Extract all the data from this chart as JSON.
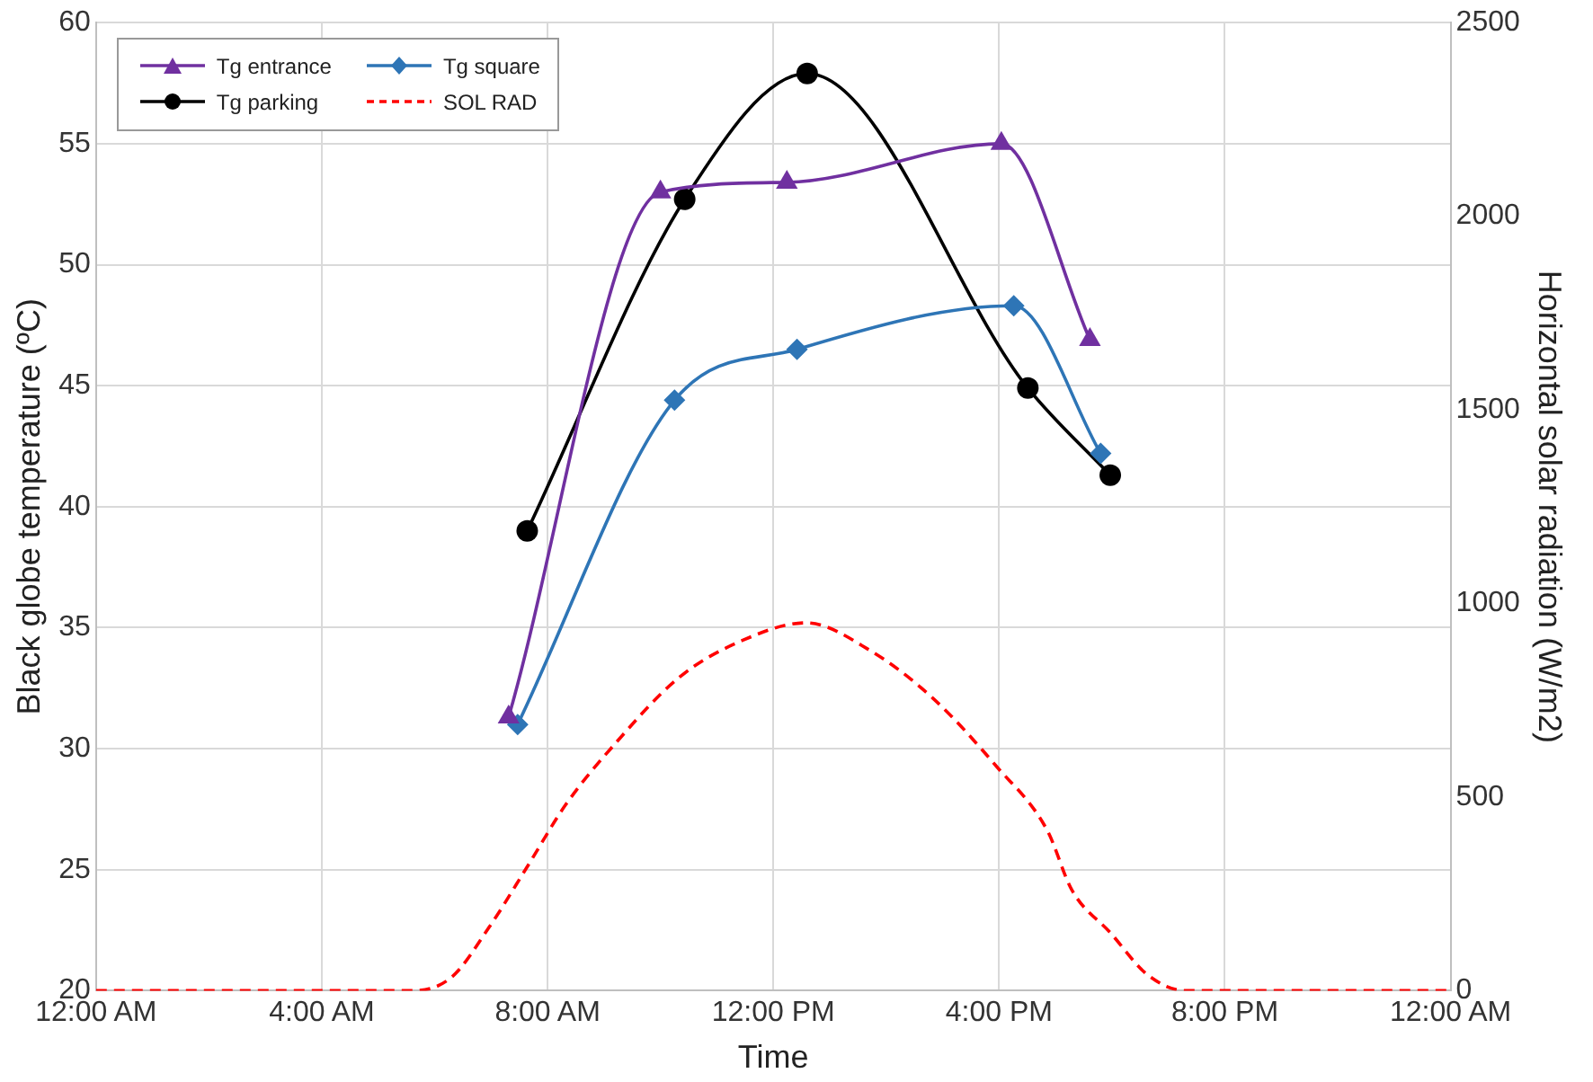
{
  "chart_data": {
    "type": "line",
    "xlabel": "Time",
    "ylabel": "Black globe temperature (ºC)",
    "y2label": "Horizontal solar radiation (W/m2)",
    "xlim": [
      0,
      24
    ],
    "xticks": [
      {
        "value": 0,
        "label": "12:00 AM"
      },
      {
        "value": 4,
        "label": "4:00 AM"
      },
      {
        "value": 8,
        "label": "8:00 AM"
      },
      {
        "value": 12,
        "label": "12:00 PM"
      },
      {
        "value": 16,
        "label": "4:00 PM"
      },
      {
        "value": 20,
        "label": "8:00 PM"
      },
      {
        "value": 24,
        "label": "12:00 AM"
      }
    ],
    "ylim": [
      20,
      60
    ],
    "yticks": [
      20,
      25,
      30,
      35,
      40,
      45,
      50,
      55,
      60
    ],
    "y2lim": [
      0,
      2500
    ],
    "y2ticks": [
      0,
      500,
      1000,
      1500,
      2000,
      2500
    ],
    "grid": true,
    "legend": "top left",
    "series": [
      {
        "name": "Tg entrance",
        "color": "#7030a0",
        "marker": "triangle",
        "line_style": "solid",
        "x": [
          7.31,
          10.0,
          12.24,
          16.04,
          17.61
        ],
        "values": [
          31.3,
          53.0,
          53.4,
          55.0,
          46.9
        ]
      },
      {
        "name": "Tg square",
        "color": "#2e75b6",
        "marker": "diamond",
        "line_style": "solid",
        "x": [
          7.47,
          10.25,
          12.42,
          16.26,
          17.8
        ],
        "values": [
          31.0,
          44.4,
          46.5,
          48.3,
          42.2
        ]
      },
      {
        "name": "Tg parking",
        "color": "#000000",
        "marker": "circle",
        "line_style": "solid",
        "x": [
          7.64,
          10.43,
          12.6,
          16.51,
          17.97
        ],
        "values": [
          39.0,
          52.7,
          57.9,
          44.9,
          41.3
        ]
      },
      {
        "name": "SOL RAD",
        "color": "#ff0000",
        "marker": "none",
        "line_style": "dashed",
        "axis": "y2",
        "x": [
          0,
          5.62,
          6.3,
          6.97,
          7.64,
          8.32,
          9.21,
          10.34,
          11.46,
          12.58,
          13.7,
          14.83,
          15.95,
          16.85,
          17.29,
          17.97,
          18.64,
          19.31,
          24
        ],
        "values": [
          0,
          0,
          35,
          165,
          320,
          480,
          640,
          810,
          905,
          950,
          880,
          755,
          580,
          415,
          260,
          150,
          40,
          0,
          0
        ]
      }
    ]
  }
}
